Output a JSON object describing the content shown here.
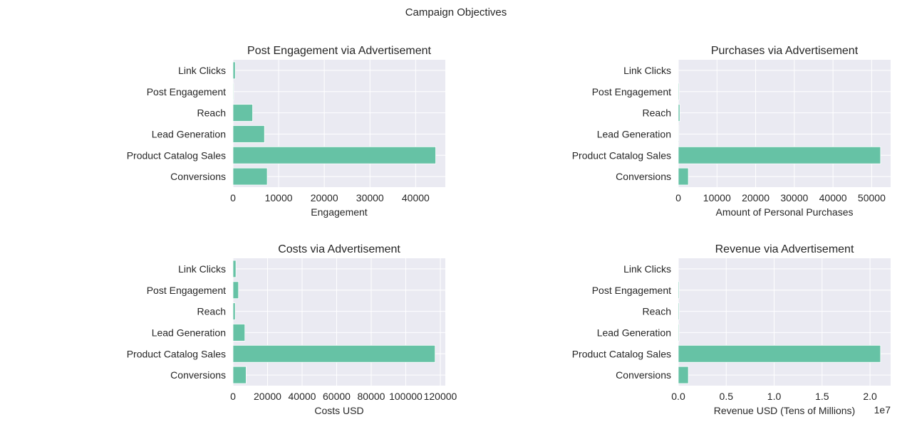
{
  "figure": {
    "suptitle": "Campaign Objectives"
  },
  "colors": {
    "bar": "#66c2a5",
    "panel_bg": "#eaeaf2",
    "grid": "#ffffff",
    "text": "#262626"
  },
  "chart_data": [
    {
      "type": "bar",
      "orientation": "horizontal",
      "title": "Post Engagement via Advertisement",
      "xlabel": "Engagement",
      "ylabel": "",
      "categories": [
        "Link Clicks",
        "Post Engagement",
        "Reach",
        "Lead Generation",
        "Product Catalog Sales",
        "Conversions"
      ],
      "values": [
        500,
        150,
        4300,
        6900,
        44400,
        7500
      ],
      "xlim": [
        0,
        46500
      ],
      "xticks": [
        0,
        10000,
        20000,
        30000,
        40000
      ],
      "xtick_labels": [
        "0",
        "10000",
        "20000",
        "30000",
        "40000"
      ],
      "offset_label": "",
      "grid": true
    },
    {
      "type": "bar",
      "orientation": "horizontal",
      "title": "Purchases via Advertisement",
      "xlabel": "Amount of Personal Purchases",
      "ylabel": "",
      "categories": [
        "Link Clicks",
        "Post Engagement",
        "Reach",
        "Lead Generation",
        "Product Catalog Sales",
        "Conversions"
      ],
      "values": [
        20,
        200,
        400,
        150,
        52300,
        2600
      ],
      "xlim": [
        0,
        54900
      ],
      "xticks": [
        0,
        10000,
        20000,
        30000,
        40000,
        50000
      ],
      "xtick_labels": [
        "0",
        "10000",
        "20000",
        "30000",
        "40000",
        "50000"
      ],
      "offset_label": "",
      "grid": true
    },
    {
      "type": "bar",
      "orientation": "horizontal",
      "title": "Costs via Advertisement",
      "xlabel": "Costs USD",
      "ylabel": "",
      "categories": [
        "Link Clicks",
        "Post Engagement",
        "Reach",
        "Lead Generation",
        "Product Catalog Sales",
        "Conversions"
      ],
      "values": [
        1700,
        3200,
        1300,
        6900,
        117000,
        7600
      ],
      "xlim": [
        0,
        122900
      ],
      "xticks": [
        0,
        20000,
        40000,
        60000,
        80000,
        100000,
        120000
      ],
      "xtick_labels": [
        "0",
        "20000",
        "40000",
        "60000",
        "80000",
        "100000",
        "120000"
      ],
      "offset_label": "",
      "grid": true
    },
    {
      "type": "bar",
      "orientation": "horizontal",
      "title": "Revenue via Advertisement",
      "xlabel": "Revenue USD (Tens of Millions)",
      "ylabel": "",
      "categories": [
        "Link Clicks",
        "Post Engagement",
        "Reach",
        "Lead Generation",
        "Product Catalog Sales",
        "Conversions"
      ],
      "values": [
        10000,
        90000,
        90000,
        80000,
        21100000,
        1050000
      ],
      "xlim": [
        0,
        22150000
      ],
      "xticks": [
        0,
        5000000,
        10000000,
        15000000,
        20000000
      ],
      "xtick_labels": [
        "0.0",
        "0.5",
        "1.0",
        "1.5",
        "2.0"
      ],
      "offset_label": "1e7",
      "grid": true
    }
  ]
}
